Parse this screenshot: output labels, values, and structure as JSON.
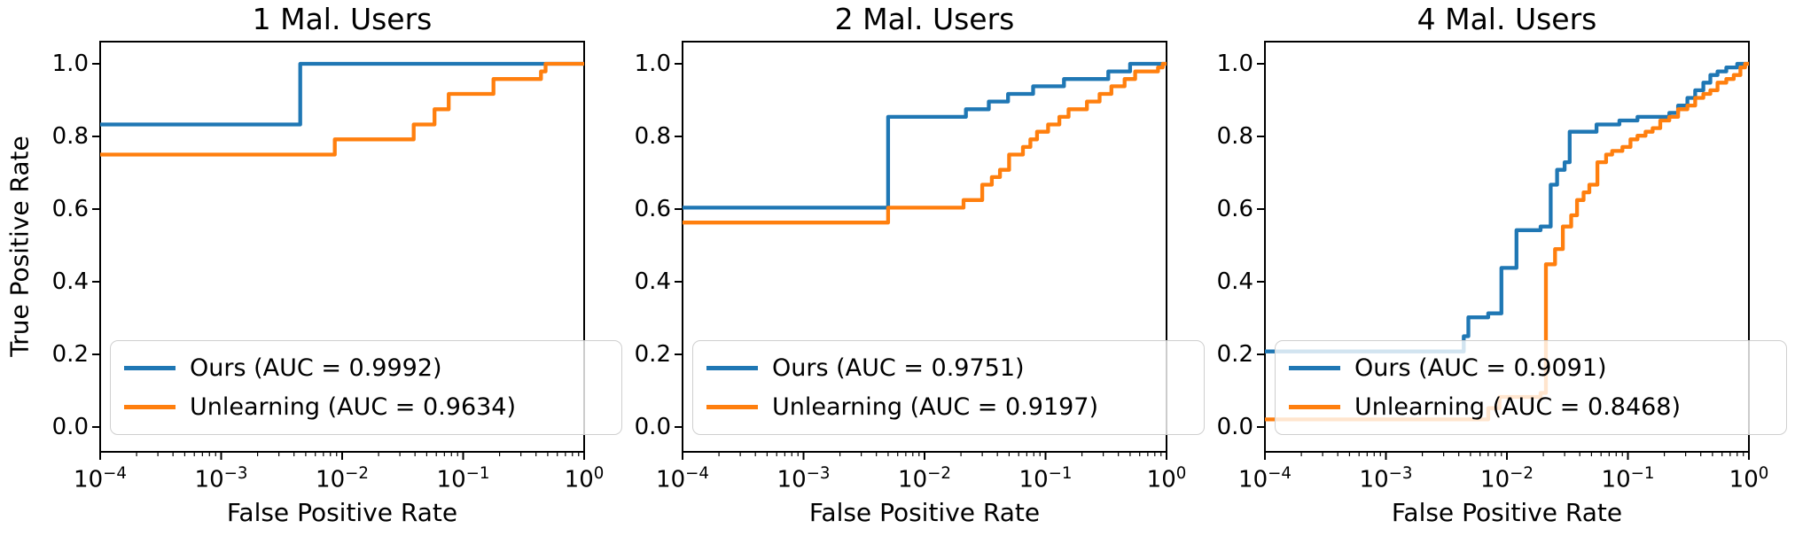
{
  "ylabel": "True Positive Rate",
  "colors": {
    "ours": "#1f77b4",
    "unlearning": "#ff7f0e",
    "axis": "#000000",
    "legend_border": "#cfcfcf",
    "background": "#ffffff"
  },
  "y_tick_labels": [
    "0.0",
    "0.2",
    "0.4",
    "0.6",
    "0.8",
    "1.0"
  ],
  "y_tick_values": [
    0.0,
    0.2,
    0.4,
    0.6,
    0.8,
    1.0
  ],
  "x_tick_base": "10",
  "x_tick_exponents": [
    "−4",
    "−3",
    "−2",
    "−1",
    "0"
  ],
  "x_tick_values": [
    0.0001,
    0.001,
    0.01,
    0.1,
    1
  ],
  "chart_data": [
    {
      "type": "line",
      "title": "1 Mal. Users",
      "xlabel": "False Positive Rate",
      "ylabel": "True Positive Rate",
      "xscale": "log",
      "xlim": [
        0.0001,
        1.0
      ],
      "ylim": [
        0.0,
        1.0
      ],
      "grid": false,
      "legend_loc": "lower left",
      "series": [
        {
          "name": "Ours",
          "auc": 0.9992,
          "legend_label": "Ours (AUC = 0.9992)",
          "color_key": "ours",
          "points": [
            [
              0.0001,
              0.833
            ],
            [
              0.0045,
              1.0
            ],
            [
              1.0,
              1.0
            ]
          ]
        },
        {
          "name": "Unlearning",
          "auc": 0.9634,
          "legend_label": "Unlearning (AUC = 0.9634)",
          "color_key": "unlearning",
          "points": [
            [
              0.0001,
              0.75
            ],
            [
              0.0087,
              0.792
            ],
            [
              0.039,
              0.833
            ],
            [
              0.058,
              0.875
            ],
            [
              0.076,
              0.917
            ],
            [
              0.178,
              0.958
            ],
            [
              0.44,
              0.979
            ],
            [
              0.48,
              1.0
            ],
            [
              1.0,
              1.0
            ]
          ]
        }
      ]
    },
    {
      "type": "line",
      "title": "2 Mal. Users",
      "xlabel": "False Positive Rate",
      "ylabel": "True Positive Rate",
      "xscale": "log",
      "xlim": [
        0.0001,
        1.0
      ],
      "ylim": [
        0.0,
        1.0
      ],
      "grid": false,
      "legend_loc": "lower left",
      "series": [
        {
          "name": "Ours",
          "auc": 0.9751,
          "legend_label": "Ours (AUC = 0.9751)",
          "color_key": "ours",
          "points": [
            [
              0.0001,
              0.604
            ],
            [
              0.005,
              0.854
            ],
            [
              0.022,
              0.875
            ],
            [
              0.034,
              0.896
            ],
            [
              0.049,
              0.917
            ],
            [
              0.079,
              0.938
            ],
            [
              0.142,
              0.958
            ],
            [
              0.33,
              0.979
            ],
            [
              0.5,
              1.0
            ],
            [
              1.0,
              1.0
            ]
          ]
        },
        {
          "name": "Unlearning",
          "auc": 0.9197,
          "legend_label": "Unlearning (AUC = 0.9197)",
          "color_key": "unlearning",
          "points": [
            [
              0.0001,
              0.563
            ],
            [
              0.005,
              0.604
            ],
            [
              0.021,
              0.625
            ],
            [
              0.03,
              0.667
            ],
            [
              0.036,
              0.688
            ],
            [
              0.042,
              0.708
            ],
            [
              0.05,
              0.75
            ],
            [
              0.065,
              0.771
            ],
            [
              0.075,
              0.792
            ],
            [
              0.085,
              0.813
            ],
            [
              0.105,
              0.833
            ],
            [
              0.13,
              0.854
            ],
            [
              0.155,
              0.875
            ],
            [
              0.22,
              0.896
            ],
            [
              0.28,
              0.917
            ],
            [
              0.35,
              0.938
            ],
            [
              0.45,
              0.958
            ],
            [
              0.55,
              0.979
            ],
            [
              0.85,
              0.99
            ],
            [
              0.93,
              1.0
            ],
            [
              1.0,
              1.0
            ]
          ]
        }
      ]
    },
    {
      "type": "line",
      "title": "4 Mal. Users",
      "xlabel": "False Positive Rate",
      "ylabel": "True Positive Rate",
      "xscale": "log",
      "xlim": [
        0.0001,
        1.0
      ],
      "ylim": [
        0.0,
        1.0
      ],
      "grid": false,
      "legend_loc": "lower left",
      "series": [
        {
          "name": "Ours",
          "auc": 0.9091,
          "legend_label": "Ours (AUC = 0.9091)",
          "color_key": "ours",
          "points": [
            [
              0.0001,
              0.208
            ],
            [
              0.0044,
              0.25
            ],
            [
              0.0048,
              0.302
            ],
            [
              0.007,
              0.313
            ],
            [
              0.009,
              0.438
            ],
            [
              0.012,
              0.542
            ],
            [
              0.019,
              0.552
            ],
            [
              0.023,
              0.667
            ],
            [
              0.026,
              0.708
            ],
            [
              0.03,
              0.729
            ],
            [
              0.033,
              0.813
            ],
            [
              0.055,
              0.833
            ],
            [
              0.085,
              0.844
            ],
            [
              0.12,
              0.854
            ],
            [
              0.22,
              0.865
            ],
            [
              0.26,
              0.885
            ],
            [
              0.31,
              0.906
            ],
            [
              0.36,
              0.927
            ],
            [
              0.42,
              0.948
            ],
            [
              0.48,
              0.969
            ],
            [
              0.55,
              0.979
            ],
            [
              0.65,
              0.99
            ],
            [
              0.8,
              1.0
            ],
            [
              1.0,
              1.0
            ]
          ]
        },
        {
          "name": "Unlearning",
          "auc": 0.8468,
          "legend_label": "Unlearning (AUC = 0.8468)",
          "color_key": "unlearning",
          "points": [
            [
              0.0001,
              0.021
            ],
            [
              0.007,
              0.052
            ],
            [
              0.0087,
              0.083
            ],
            [
              0.019,
              0.094
            ],
            [
              0.021,
              0.448
            ],
            [
              0.025,
              0.49
            ],
            [
              0.029,
              0.552
            ],
            [
              0.034,
              0.583
            ],
            [
              0.038,
              0.625
            ],
            [
              0.043,
              0.646
            ],
            [
              0.048,
              0.667
            ],
            [
              0.056,
              0.729
            ],
            [
              0.066,
              0.75
            ],
            [
              0.074,
              0.76
            ],
            [
              0.09,
              0.771
            ],
            [
              0.105,
              0.792
            ],
            [
              0.12,
              0.802
            ],
            [
              0.14,
              0.813
            ],
            [
              0.16,
              0.823
            ],
            [
              0.185,
              0.844
            ],
            [
              0.22,
              0.854
            ],
            [
              0.26,
              0.875
            ],
            [
              0.31,
              0.885
            ],
            [
              0.36,
              0.906
            ],
            [
              0.42,
              0.917
            ],
            [
              0.48,
              0.927
            ],
            [
              0.55,
              0.948
            ],
            [
              0.65,
              0.958
            ],
            [
              0.75,
              0.969
            ],
            [
              0.85,
              0.99
            ],
            [
              0.93,
              1.0
            ],
            [
              1.0,
              1.0
            ]
          ]
        }
      ]
    }
  ]
}
